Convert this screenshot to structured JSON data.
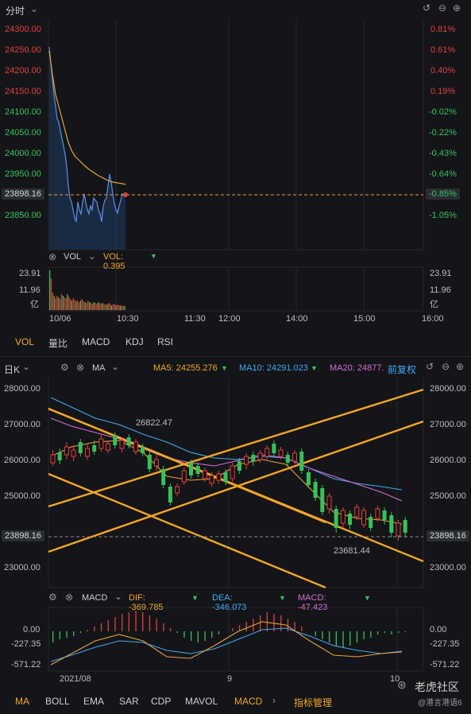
{
  "intraday": {
    "title": "分时",
    "price_labels": [
      "24300.00",
      "24250.00",
      "24200.00",
      "24150.00",
      "24100.00",
      "24050.00",
      "24000.00",
      "23950.00",
      "23898.16",
      "23850.00"
    ],
    "pct_labels": [
      "0.81%",
      "0.61%",
      "0.40%",
      "0.19%",
      "-0.02%",
      "-0.22%",
      "-0.43%",
      "-0.64%",
      "-0.85%",
      "-1.05%"
    ],
    "vol_indicator": "VOL",
    "vol_value": "VOL: 0.395",
    "vol_axis": [
      "23.91",
      "11.96",
      "亿"
    ],
    "time_labels": [
      "10/06",
      "10:30",
      "11:30",
      "12:00",
      "14:00",
      "15:00",
      "16:00"
    ]
  },
  "indicator_tabs_top": [
    "VOL",
    "量比",
    "MACD",
    "KDJ",
    "RSI"
  ],
  "daily": {
    "title": "日K",
    "ma_label": "MA",
    "ma5": "MA5: 24255.276",
    "ma10": "MA10: 24291.023",
    "ma20": "MA20: 24877.",
    "adjust": "前复权",
    "price_labels": [
      "28000.00",
      "27000.00",
      "26000.00",
      "25000.00",
      "23898.16",
      "23000.00"
    ],
    "annot_high": "26822.47",
    "annot_low": "23681.44",
    "macd_label": "MACD",
    "dif": "DIF: -369.785",
    "dea": "DEA: -346.073",
    "macd": "MACD: -47.423",
    "macd_axis": [
      "0.00",
      "-227.35",
      "-571.22"
    ],
    "date_labels": [
      "2021/08",
      "9",
      "10"
    ]
  },
  "indicator_tabs_bottom": [
    "MA",
    "BOLL",
    "EMA",
    "SAR",
    "CDP",
    "MAVOL",
    "MACD",
    "指标管理"
  ],
  "watermark": "老虎社区",
  "watermark_sub": "@港言港语6",
  "colors": {
    "up": "#e0403a",
    "down": "#36c25a",
    "accent": "#f5a623",
    "ma10": "#3fa9f5",
    "ma20": "#d86ad8",
    "price_line": "#5a8ff0",
    "avg_line": "#e8a33a"
  }
}
